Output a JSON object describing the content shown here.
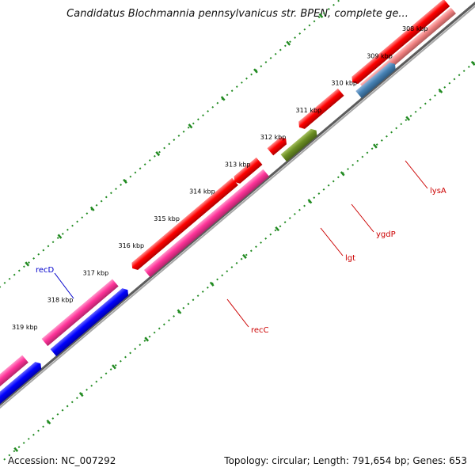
{
  "title": "Candidatus Blochmannia pennsylvanicus str. BPEN, complete ge...",
  "footer": {
    "accession": "Accession: NC_007292",
    "summary": "Topology: circular; Length: 791,654 bp; Genes: 653"
  },
  "colors": {
    "backbone": "#808080",
    "tick": "#228b22",
    "gene_red": "#ff0000",
    "gene_pink": "#ff3399",
    "gene_blue": "#0000ff",
    "gene_steelblue": "#4682b4",
    "gene_olive": "#6b8e23",
    "gene_salmon": "#f08080",
    "label_red": "#cc0000",
    "label_blue": "#0000cc"
  },
  "ruler": [
    {
      "label": "308 kbp",
      "kbp": 308
    },
    {
      "label": "309 kbp",
      "kbp": 309
    },
    {
      "label": "310 kbp",
      "kbp": 310
    },
    {
      "label": "311 kbp",
      "kbp": 311
    },
    {
      "label": "312 kbp",
      "kbp": 312
    },
    {
      "label": "313 kbp",
      "kbp": 313
    },
    {
      "label": "314 kbp",
      "kbp": 314
    },
    {
      "label": "315 kbp",
      "kbp": 315
    },
    {
      "label": "316 kbp",
      "kbp": 316
    },
    {
      "label": "317 kbp",
      "kbp": 317
    },
    {
      "label": "318 kbp",
      "kbp": 318
    },
    {
      "label": "319 kbp",
      "kbp": 319
    }
  ],
  "genes": [
    {
      "name": "lysA",
      "color": "gene_red",
      "label_color": "label_red",
      "lane": 1
    },
    {
      "name": "ygdP",
      "color": "gene_red",
      "label_color": "label_red",
      "lane": 1
    },
    {
      "name": "lgt",
      "color": "gene_olive",
      "label_color": "label_red",
      "lane": 2
    },
    {
      "name": "recC",
      "color": "gene_pink",
      "label_color": "label_red",
      "lane": 2
    },
    {
      "name": "recD",
      "color": "gene_blue",
      "label_color": "label_blue",
      "lane": 2
    }
  ]
}
